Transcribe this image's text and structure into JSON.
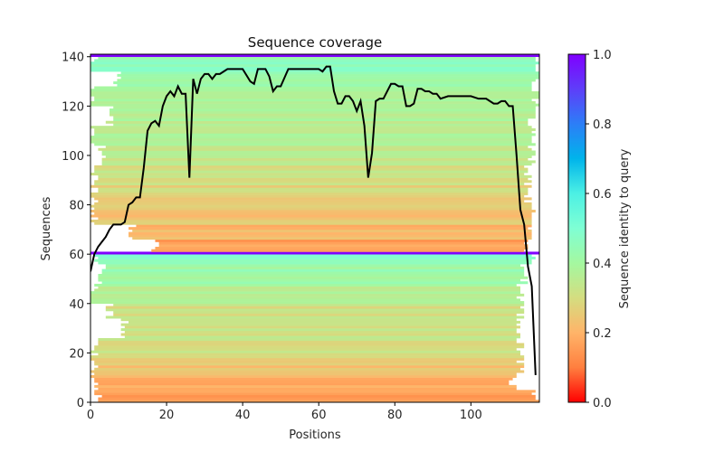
{
  "chart_data": {
    "type": "heatmap",
    "title": "Sequence coverage",
    "xlabel": "Positions",
    "ylabel": "Sequences",
    "xlim": [
      0,
      118
    ],
    "ylim": [
      0,
      141
    ],
    "x_ticks": [
      0,
      20,
      40,
      60,
      80,
      100
    ],
    "y_ticks": [
      0,
      20,
      40,
      60,
      80,
      100,
      120,
      140
    ],
    "grid": false,
    "colorbar": {
      "label": "Sequence identity to query",
      "range": [
        0.0,
        1.0
      ],
      "ticks": [
        "0.0",
        "0.2",
        "0.4",
        "0.6",
        "0.8",
        "1.0"
      ],
      "colormap": "rainbow",
      "stops": [
        "#ff0000",
        "#ff7f3f",
        "#ffb469",
        "#d4dd80",
        "#a4f8a0",
        "#7fffd4",
        "#4cf0e4",
        "#00b4eb",
        "#2c7ef7",
        "#5e3ef9",
        "#8000ff"
      ]
    },
    "query_rows": [
      60,
      141
    ],
    "row_bands": [
      {
        "from": 0,
        "to": 5,
        "identity": 0.17,
        "start": 1,
        "end": 118
      },
      {
        "from": 5,
        "to": 12,
        "identity": 0.2,
        "start": 0,
        "end": 112
      },
      {
        "from": 12,
        "to": 18,
        "identity": 0.24,
        "start": 0,
        "end": 114
      },
      {
        "from": 18,
        "to": 26,
        "identity": 0.3,
        "start": 0,
        "end": 114
      },
      {
        "from": 26,
        "to": 34,
        "identity": 0.33,
        "start": 8,
        "end": 114
      },
      {
        "from": 34,
        "to": 40,
        "identity": 0.31,
        "start": 4,
        "end": 114
      },
      {
        "from": 40,
        "to": 48,
        "identity": 0.38,
        "start": 0,
        "end": 114
      },
      {
        "from": 48,
        "to": 56,
        "identity": 0.42,
        "start": 2,
        "end": 115
      },
      {
        "from": 56,
        "to": 60,
        "identity": 0.46,
        "start": 0,
        "end": 118
      },
      {
        "from": 60,
        "to": 61,
        "identity": 1.0,
        "start": 0,
        "end": 118
      },
      {
        "from": 61,
        "to": 66,
        "identity": 0.17,
        "start": 16,
        "end": 116
      },
      {
        "from": 66,
        "to": 72,
        "identity": 0.2,
        "start": 10,
        "end": 116
      },
      {
        "from": 72,
        "to": 80,
        "identity": 0.24,
        "start": 0,
        "end": 117
      },
      {
        "from": 80,
        "to": 88,
        "identity": 0.28,
        "start": 0,
        "end": 116
      },
      {
        "from": 88,
        "to": 96,
        "identity": 0.31,
        "start": 0,
        "end": 116
      },
      {
        "from": 96,
        "to": 104,
        "identity": 0.34,
        "start": 2,
        "end": 117
      },
      {
        "from": 104,
        "to": 112,
        "identity": 0.38,
        "start": 0,
        "end": 117
      },
      {
        "from": 112,
        "to": 120,
        "identity": 0.36,
        "start": 4,
        "end": 117
      },
      {
        "from": 120,
        "to": 128,
        "identity": 0.4,
        "start": 0,
        "end": 118
      },
      {
        "from": 128,
        "to": 134,
        "identity": 0.42,
        "start": 6,
        "end": 118
      },
      {
        "from": 134,
        "to": 140,
        "identity": 0.46,
        "start": 0,
        "end": 118
      },
      {
        "from": 140,
        "to": 141,
        "identity": 1.0,
        "start": 0,
        "end": 118
      }
    ],
    "coverage_line": {
      "x": [
        0,
        1,
        2,
        3,
        4,
        5,
        6,
        7,
        8,
        9,
        10,
        11,
        12,
        13,
        14,
        15,
        16,
        17,
        18,
        19,
        20,
        21,
        22,
        23,
        24,
        25,
        26,
        27,
        28,
        29,
        30,
        31,
        32,
        33,
        34,
        35,
        36,
        38,
        40,
        42,
        43,
        44,
        45,
        46,
        47,
        48,
        49,
        50,
        52,
        55,
        58,
        60,
        61,
        62,
        63,
        64,
        65,
        66,
        67,
        68,
        69,
        70,
        71,
        72,
        73,
        74,
        75,
        76,
        77,
        78,
        79,
        80,
        81,
        82,
        83,
        84,
        85,
        86,
        87,
        88,
        89,
        90,
        91,
        92,
        94,
        96,
        98,
        100,
        102,
        104,
        106,
        107,
        108,
        109,
        110,
        111,
        112,
        113,
        114,
        115,
        116,
        117
      ],
      "y": [
        53,
        60,
        63,
        65,
        67,
        70,
        72,
        72,
        72,
        73,
        80,
        81,
        83,
        83,
        95,
        110,
        113,
        114,
        112,
        120,
        124,
        126,
        124,
        128,
        125,
        125,
        91,
        131,
        125,
        131,
        133,
        133,
        131,
        133,
        133,
        134,
        135,
        135,
        135,
        130,
        129,
        135,
        135,
        135,
        132,
        126,
        128,
        128,
        135,
        135,
        135,
        135,
        134,
        136,
        136,
        126,
        121,
        121,
        124,
        124,
        122,
        118,
        122,
        112,
        91,
        101,
        122,
        123,
        123,
        126,
        129,
        129,
        128,
        128,
        120,
        120,
        121,
        127,
        127,
        126,
        126,
        125,
        125,
        123,
        124,
        124,
        124,
        124,
        123,
        123,
        121,
        121,
        122,
        122,
        120,
        120,
        100,
        78,
        72,
        55,
        47,
        11
      ]
    }
  }
}
